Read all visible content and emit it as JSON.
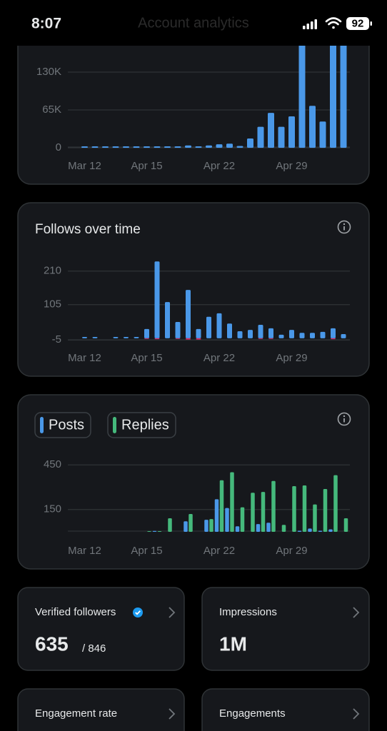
{
  "status_bar": {
    "time": "8:07",
    "battery": "92"
  },
  "header_title": "Account analytics",
  "chart_data": [
    {
      "type": "bar",
      "categories": [
        "Mar 12",
        null,
        null,
        null,
        null,
        null,
        "Apr 15",
        null,
        null,
        null,
        null,
        null,
        null,
        "Apr 22",
        null,
        null,
        null,
        null,
        null,
        null,
        "Apr 29",
        null,
        null,
        null,
        null,
        null
      ],
      "series": [
        {
          "color": "#4a98e8",
          "values": [
            2500,
            2500,
            2500,
            2500,
            2500,
            2500,
            2500,
            2500,
            2500,
            2500,
            4000,
            2500,
            4000,
            6000,
            7000,
            3000,
            16000,
            36000,
            60000,
            36000,
            54000,
            195000,
            72000,
            45000,
            195000,
            195000
          ]
        }
      ],
      "ylim": [
        0,
        195000
      ],
      "yticks": [
        {
          "value": 0,
          "label": "0"
        },
        {
          "value": 65000,
          "label": "65K"
        },
        {
          "value": 130000,
          "label": "130K"
        }
      ],
      "grid": true
    },
    {
      "type": "bar",
      "title": "Follows over time",
      "barmode": "overlay",
      "categories": [
        "Mar 12",
        null,
        null,
        null,
        null,
        null,
        "Apr 15",
        null,
        null,
        null,
        null,
        null,
        null,
        "Apr 22",
        null,
        null,
        null,
        null,
        null,
        null,
        "Apr 29",
        null,
        null,
        null,
        null,
        null
      ],
      "series": [
        {
          "color": "#4a98e8",
          "values": [
            4,
            4,
            0,
            4,
            4,
            4,
            29,
            240,
            113,
            51,
            151,
            29,
            67,
            78,
            46,
            22,
            26,
            42,
            31,
            11,
            26,
            17,
            17,
            20,
            31,
            13
          ]
        },
        {
          "color": "#e0245e",
          "values": [
            0,
            0,
            0,
            0,
            0,
            0,
            -2,
            -3,
            0,
            -2,
            -4,
            -4,
            0,
            0,
            0,
            0,
            0,
            -2,
            -2,
            0,
            0,
            0,
            0,
            0,
            -3,
            0
          ]
        }
      ],
      "ylim": [
        -8,
        254
      ],
      "yticks": [
        -5,
        105,
        210
      ],
      "grid": true
    },
    {
      "type": "bar",
      "barmode": "group",
      "categories": [
        "Mar 12",
        null,
        null,
        null,
        null,
        null,
        "Apr 15",
        null,
        null,
        null,
        null,
        null,
        null,
        "Apr 22",
        null,
        null,
        null,
        null,
        null,
        null,
        "Apr 29",
        null,
        null,
        null,
        null,
        null
      ],
      "series": [
        {
          "name": "Posts",
          "color": "#4a98e8",
          "values": [
            0,
            0,
            0,
            0,
            0,
            0,
            0,
            6,
            0,
            0,
            71,
            0,
            81,
            219,
            160,
            37,
            0,
            52,
            61,
            0,
            0,
            7,
            22,
            7,
            17,
            0
          ]
        },
        {
          "name": "Replies",
          "color": "#45b97c",
          "values": [
            0,
            0,
            0,
            0,
            0,
            0,
            5,
            5,
            91,
            0,
            120,
            0,
            86,
            347,
            401,
            165,
            263,
            268,
            342,
            47,
            307,
            312,
            184,
            288,
            381,
            91
          ]
        }
      ],
      "ylim": [
        0,
        480
      ],
      "yticks": [
        150,
        450
      ],
      "grid": true,
      "legend": "top"
    }
  ],
  "cards": [
    {
      "label": "Verified followers",
      "value": "635",
      "total": "/ 846"
    },
    {
      "label": "Impressions",
      "value": "1M"
    },
    {
      "label": "Engagement rate"
    },
    {
      "label": "Engagements"
    }
  ]
}
